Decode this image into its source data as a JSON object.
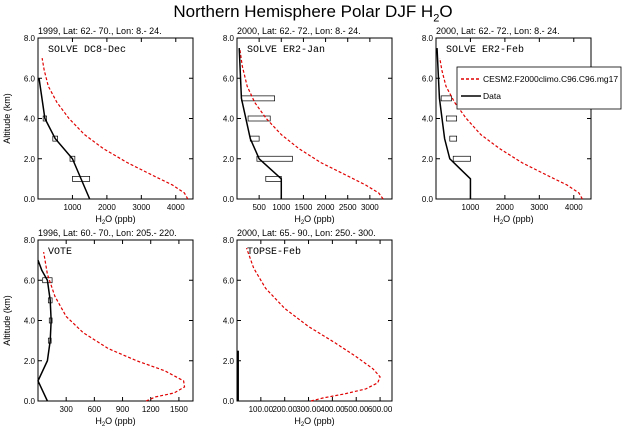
{
  "figure": {
    "title_main": "Northern Hemisphere Polar DJF H",
    "title_sub": "2",
    "title_tail": "O",
    "ylabel": "Altitude (km)",
    "xlabel_main": "H",
    "xlabel_sub": "2",
    "xlabel_tail": "O (ppb)"
  },
  "legend": {
    "entries": [
      {
        "label": "CESM2.F2000climo.C96.C96.mg17",
        "color": "#e00000",
        "style": "dashed"
      },
      {
        "label": "Data",
        "color": "#000000",
        "style": "solid"
      }
    ]
  },
  "chart_data": [
    {
      "type": "line",
      "header": "1999, Lat: 62.- 70., Lon: 8.- 24.",
      "name": "SOLVE DC8-Dec",
      "xlim": [
        0,
        4500
      ],
      "ylim": [
        0,
        8
      ],
      "xticks": [
        1000,
        2000,
        3000,
        4000
      ],
      "xtick_labels": [
        "1000",
        "2000",
        "3000",
        "4000"
      ],
      "yticks": [
        0,
        2,
        4,
        6,
        8
      ],
      "ytick_labels": [
        "0.0",
        "2.0",
        "4.0",
        "6.0",
        "8.0"
      ],
      "model": {
        "x": [
          4350,
          4250,
          3900,
          3300,
          2600,
          1900,
          1350,
          900,
          550,
          300,
          180,
          120
        ],
        "y": [
          0,
          0.3,
          0.7,
          1.2,
          1.8,
          2.5,
          3.2,
          4.0,
          4.8,
          5.6,
          6.4,
          7.0
        ]
      },
      "data": {
        "x": [
          1500,
          1250,
          1000,
          500,
          200,
          30
        ],
        "y": [
          0,
          1,
          2,
          3,
          4,
          6
        ]
      },
      "boxes": [
        {
          "y": 1,
          "x0": 1000,
          "x1": 1500
        },
        {
          "y": 2,
          "x0": 930,
          "x1": 1070
        },
        {
          "y": 3,
          "x0": 430,
          "x1": 570
        },
        {
          "y": 4,
          "x0": 150,
          "x1": 250
        }
      ]
    },
    {
      "type": "line",
      "header": "2000, Lat: 62.- 72., Lon: 8.- 24.",
      "name": "SOLVE ER2-Jan",
      "xlim": [
        0,
        3500
      ],
      "ylim": [
        0,
        8
      ],
      "xticks": [
        500,
        1000,
        1500,
        2000,
        2500,
        3000
      ],
      "xtick_labels": [
        "500",
        "1000",
        "1500",
        "2000",
        "2500",
        "3000"
      ],
      "yticks": [
        0,
        2,
        4,
        6,
        8
      ],
      "ytick_labels": [
        "0.0",
        "2.0",
        "4.0",
        "6.0",
        "8.0"
      ],
      "model": {
        "x": [
          3300,
          3200,
          2900,
          2450,
          1900,
          1400,
          1000,
          660,
          400,
          230,
          120,
          60
        ],
        "y": [
          0,
          0.3,
          0.7,
          1.2,
          1.8,
          2.5,
          3.2,
          4.0,
          4.8,
          5.6,
          6.6,
          7.5
        ]
      },
      "data": {
        "x": [
          1000,
          1000,
          750,
          500,
          300,
          100,
          50
        ],
        "y": [
          0,
          1,
          1.5,
          2,
          3,
          5,
          7.5
        ]
      },
      "boxes": [
        {
          "y": 1,
          "x0": 650,
          "x1": 1000
        },
        {
          "y": 2,
          "x0": 450,
          "x1": 1250
        },
        {
          "y": 3,
          "x0": 300,
          "x1": 500
        },
        {
          "y": 4,
          "x0": 250,
          "x1": 750
        },
        {
          "y": 5,
          "x0": 100,
          "x1": 850
        }
      ]
    },
    {
      "type": "line",
      "header": "2000, Lat: 62.- 72., Lon: 8.- 24.",
      "name": "SOLVE ER2-Feb",
      "xlim": [
        0,
        4500
      ],
      "ylim": [
        0,
        8
      ],
      "xticks": [
        1000,
        2000,
        3000,
        4000
      ],
      "xtick_labels": [
        "1000",
        "2000",
        "3000",
        "4000"
      ],
      "yticks": [
        0,
        2,
        4,
        6,
        8
      ],
      "ytick_labels": [
        "0.0",
        "2.0",
        "4.0",
        "6.0",
        "8.0"
      ],
      "model": {
        "x": [
          4250,
          4150,
          3800,
          3200,
          2500,
          1850,
          1300,
          880,
          540,
          290,
          170,
          110
        ],
        "y": [
          0,
          0.3,
          0.7,
          1.2,
          1.8,
          2.5,
          3.2,
          4.0,
          4.8,
          5.6,
          6.4,
          7.0
        ]
      },
      "data": {
        "x": [
          1000,
          1000,
          700,
          400,
          250,
          100,
          30
        ],
        "y": [
          0,
          1,
          1.5,
          2,
          3,
          5,
          7.5
        ]
      },
      "boxes": [
        {
          "y": 2,
          "x0": 500,
          "x1": 1000
        },
        {
          "y": 3,
          "x0": 400,
          "x1": 600
        },
        {
          "y": 4,
          "x0": 300,
          "x1": 600
        },
        {
          "y": 5,
          "x0": 150,
          "x1": 450
        }
      ]
    },
    {
      "type": "line",
      "header": "1996, Lat: 60.- 70., Lon: 205.- 220.",
      "name": "VOTE",
      "xlim": [
        0,
        1650
      ],
      "ylim": [
        0,
        8
      ],
      "xticks": [
        300,
        600,
        900,
        1200,
        1500
      ],
      "xtick_labels": [
        "300",
        "600",
        "900",
        "1200",
        "1500"
      ],
      "yticks": [
        0,
        2,
        4,
        6,
        8
      ],
      "ytick_labels": [
        "0.0",
        "2.0",
        "4.0",
        "6.0",
        "8.0"
      ],
      "model": {
        "x": [
          1150,
          1250,
          1450,
          1560,
          1550,
          1350,
          1050,
          750,
          480,
          300,
          180,
          100,
          60
        ],
        "y": [
          0,
          0.2,
          0.4,
          0.7,
          1.0,
          1.5,
          2.0,
          2.6,
          3.4,
          4.2,
          5.2,
          6.3,
          7.4
        ]
      },
      "data": {
        "x": [
          100,
          50,
          0,
          100,
          130,
          140,
          130,
          100,
          40,
          0
        ],
        "y": [
          0,
          0.5,
          1.0,
          2.0,
          3.0,
          4.0,
          5.0,
          6.0,
          6.5,
          7.0
        ]
      },
      "boxes": [
        {
          "y": 3,
          "x0": 110,
          "x1": 140
        },
        {
          "y": 4,
          "x0": 120,
          "x1": 150
        },
        {
          "y": 5,
          "x0": 110,
          "x1": 150
        },
        {
          "y": 6,
          "x0": 50,
          "x1": 150
        }
      ]
    },
    {
      "type": "line",
      "header": "2000, Lat: 65.- 90., Lon: 250.- 300.",
      "name": "TOPSE-Feb",
      "xlim": [
        0,
        650
      ],
      "ylim": [
        0,
        8
      ],
      "xticks": [
        100,
        200,
        300,
        400,
        500,
        600
      ],
      "xtick_labels": [
        "100.00",
        "200.00",
        "300.00",
        "400.00",
        "500.00",
        "600.00"
      ],
      "yticks": [
        0,
        2,
        4,
        6,
        8
      ],
      "ytick_labels": [
        "0.0",
        "2.0",
        "4.0",
        "6.0",
        "8.0"
      ],
      "model": {
        "x": [
          310,
          360,
          450,
          540,
          590,
          600,
          570,
          500,
          410,
          300,
          200,
          120,
          70,
          40
        ],
        "y": [
          0,
          0.15,
          0.35,
          0.6,
          0.9,
          1.2,
          1.6,
          2.2,
          2.9,
          3.7,
          4.6,
          5.6,
          6.6,
          7.6
        ]
      },
      "data": {
        "x": [
          5,
          5
        ],
        "y": [
          0,
          2.5
        ]
      },
      "boxes": []
    }
  ]
}
